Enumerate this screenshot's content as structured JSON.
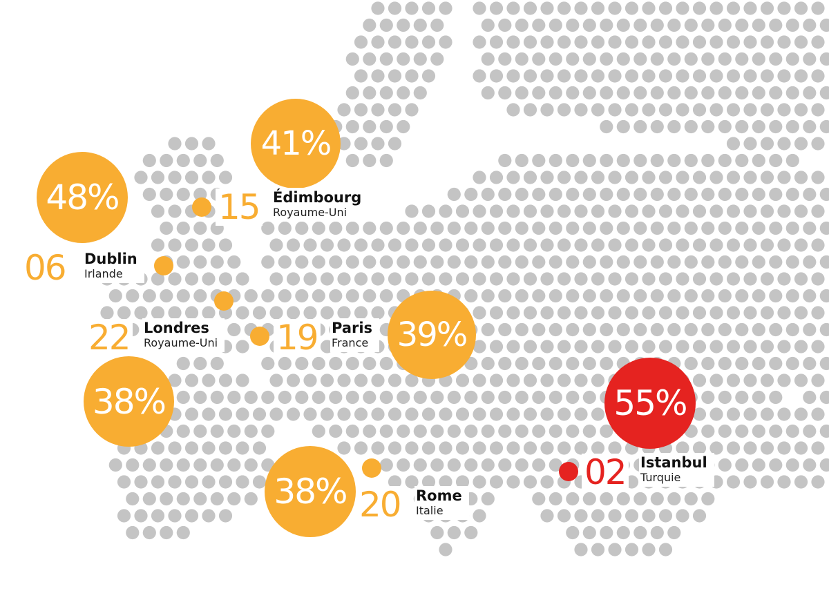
{
  "colors": {
    "dot_grey": "#c4c4c4",
    "accent_orange": "#f8ad32",
    "accent_red": "#e52320",
    "text_dark": "#111111",
    "background": "#ffffff"
  },
  "cities": [
    {
      "key": "dublin",
      "rank": "06",
      "city": "Dublin",
      "country": "Irlande",
      "percent": "48%",
      "color": "orange"
    },
    {
      "key": "edimbourg",
      "rank": "15",
      "city": "Édimbourg",
      "country": "Royaume-Uni",
      "percent": "41%",
      "color": "orange"
    },
    {
      "key": "londres",
      "rank": "22",
      "city": "Londres",
      "country": "Royaume-Uni",
      "percent": "38%",
      "color": "orange"
    },
    {
      "key": "paris",
      "rank": "19",
      "city": "Paris",
      "country": "France",
      "percent": "39%",
      "color": "orange"
    },
    {
      "key": "rome",
      "rank": "20",
      "city": "Rome",
      "country": "Italie",
      "percent": "38%",
      "color": "orange"
    },
    {
      "key": "istanbul",
      "rank": "02",
      "city": "Istanbul",
      "country": "Turquie",
      "percent": "55%",
      "color": "red"
    }
  ]
}
